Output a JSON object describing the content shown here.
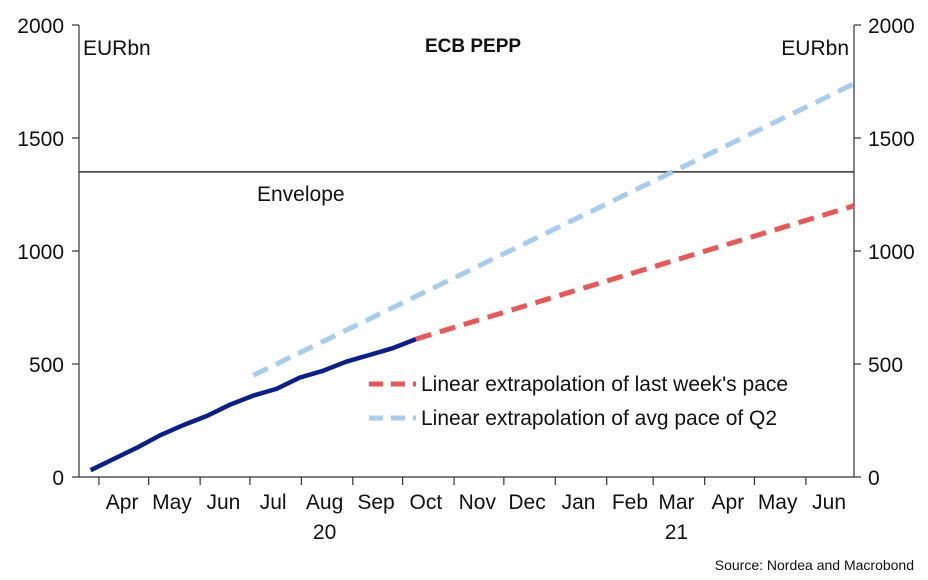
{
  "chart_data": {
    "type": "line",
    "title": "ECB PEPP",
    "ylabel_left": "EURbn",
    "ylabel_right": "EURbn",
    "ylim": [
      0,
      2000
    ],
    "yticks": [
      0,
      500,
      1000,
      1500,
      2000
    ],
    "xlim": [
      "2020-03-20",
      "2021-06-30"
    ],
    "x_ticks": [
      {
        "label": "Apr",
        "date": "2020-04-15"
      },
      {
        "label": "May",
        "date": "2020-05-15"
      },
      {
        "label": "Jun",
        "date": "2020-06-15"
      },
      {
        "label": "Jul",
        "date": "2020-07-15"
      },
      {
        "label": "Aug",
        "date": "2020-08-15"
      },
      {
        "label": "Sep",
        "date": "2020-09-15"
      },
      {
        "label": "Oct",
        "date": "2020-10-15"
      },
      {
        "label": "Nov",
        "date": "2020-11-15"
      },
      {
        "label": "Dec",
        "date": "2020-12-15"
      },
      {
        "label": "Jan",
        "date": "2021-01-15"
      },
      {
        "label": "Feb",
        "date": "2021-02-15"
      },
      {
        "label": "Mar",
        "date": "2021-03-15"
      },
      {
        "label": "Apr",
        "date": "2021-04-15"
      },
      {
        "label": "May",
        "date": "2021-05-15"
      },
      {
        "label": "Jun",
        "date": "2021-06-15"
      }
    ],
    "year_labels": [
      {
        "label": "20",
        "date": "2020-08-15"
      },
      {
        "label": "21",
        "date": "2021-03-15"
      }
    ],
    "envelope": {
      "label": "Envelope",
      "value": 1350
    },
    "series": [
      {
        "name": "",
        "color": "#0a1f8f",
        "style": "solid",
        "x": [
          "2020-03-27",
          "2020-04-10",
          "2020-04-24",
          "2020-05-08",
          "2020-05-22",
          "2020-06-05",
          "2020-06-19",
          "2020-07-03",
          "2020-07-17",
          "2020-07-31",
          "2020-08-14",
          "2020-08-28",
          "2020-09-11",
          "2020-09-25",
          "2020-10-09"
        ],
        "y": [
          30,
          80,
          130,
          185,
          230,
          270,
          320,
          360,
          390,
          440,
          470,
          510,
          540,
          570,
          610
        ]
      },
      {
        "name": "Linear extrapolation of last week's pace",
        "color": "#ee5555",
        "style": "dashed",
        "x": [
          "2020-10-09",
          "2021-06-30"
        ],
        "y": [
          610,
          1200
        ]
      },
      {
        "name": "Linear extrapolation of avg pace of Q2",
        "color": "#a6cdf0",
        "style": "dashed",
        "x": [
          "2020-07-03",
          "2021-06-30"
        ],
        "y": [
          450,
          1740
        ]
      }
    ],
    "legend_position": "bottom-right",
    "source": "Source: Nordea and Macrobond"
  }
}
